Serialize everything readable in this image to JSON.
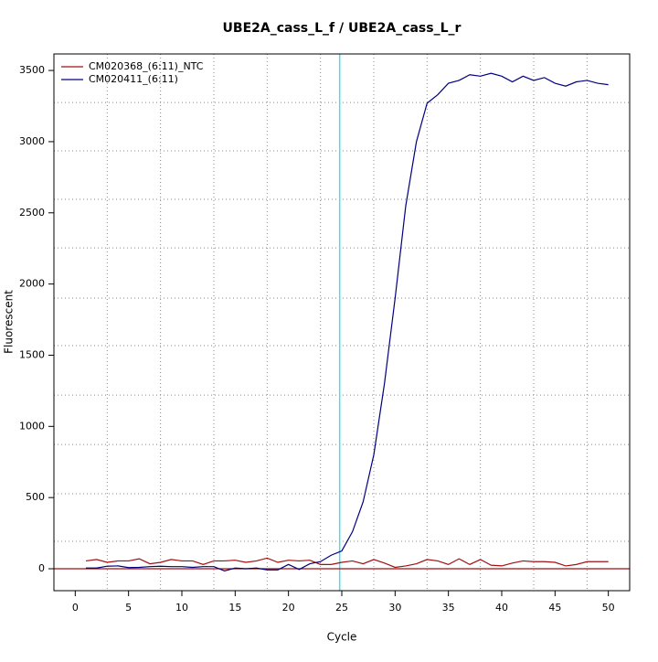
{
  "chart_data": {
    "type": "line",
    "title": "UBE2A_cass_L_f / UBE2A_cass_L_r",
    "x_label": "Cycle",
    "y_label": "Fluorescent",
    "x": [
      1,
      2,
      3,
      4,
      5,
      6,
      7,
      8,
      9,
      10,
      11,
      12,
      13,
      14,
      15,
      16,
      17,
      18,
      19,
      20,
      21,
      22,
      23,
      24,
      25,
      26,
      27,
      28,
      29,
      30,
      31,
      32,
      33,
      34,
      35,
      36,
      37,
      38,
      39,
      40,
      41,
      42,
      43,
      44,
      45,
      46,
      47,
      48,
      49,
      50
    ],
    "series": [
      {
        "name": "CM020368_(6:11)_NTC",
        "color": "#a01010",
        "values": [
          55,
          65,
          45,
          55,
          55,
          70,
          35,
          45,
          65,
          55,
          55,
          30,
          55,
          55,
          60,
          45,
          55,
          75,
          45,
          60,
          55,
          60,
          30,
          30,
          45,
          55,
          35,
          65,
          40,
          10,
          20,
          35,
          65,
          55,
          30,
          70,
          30,
          65,
          25,
          20,
          40,
          55,
          50,
          50,
          45,
          20,
          30,
          50,
          50,
          50
        ]
      },
      {
        "name": "CM020411_(6:11)",
        "color": "#000080",
        "values": [
          5,
          5,
          18,
          20,
          8,
          10,
          15,
          18,
          15,
          15,
          10,
          15,
          15,
          -15,
          5,
          0,
          5,
          -8,
          -8,
          30,
          -5,
          35,
          50,
          95,
          125,
          260,
          470,
          800,
          1300,
          1900,
          2550,
          3000,
          3270,
          3330,
          3410,
          3430,
          3470,
          3460,
          3480,
          3460,
          3420,
          3460,
          3430,
          3450,
          3410,
          3390,
          3420,
          3430,
          3410,
          3400
        ]
      }
    ],
    "xlim": [
      -2,
      52
    ],
    "ylim": [
      -154,
      3616
    ],
    "xticks": [
      0,
      5,
      10,
      15,
      20,
      25,
      30,
      35,
      40,
      45,
      50
    ],
    "yticks": [
      0,
      500,
      1000,
      1500,
      2000,
      2500,
      3000,
      3500
    ],
    "xgrid": [
      3,
      8,
      13,
      18,
      23,
      28,
      33,
      38,
      43,
      48
    ],
    "ygrid": [
      193,
      527,
      873,
      1220,
      1567,
      1901,
      2254,
      2595,
      2935,
      3275
    ],
    "threshold_x": 24.8,
    "threshold_color": "#40e0f0",
    "baseline_y": 0,
    "legend": "top-left"
  }
}
